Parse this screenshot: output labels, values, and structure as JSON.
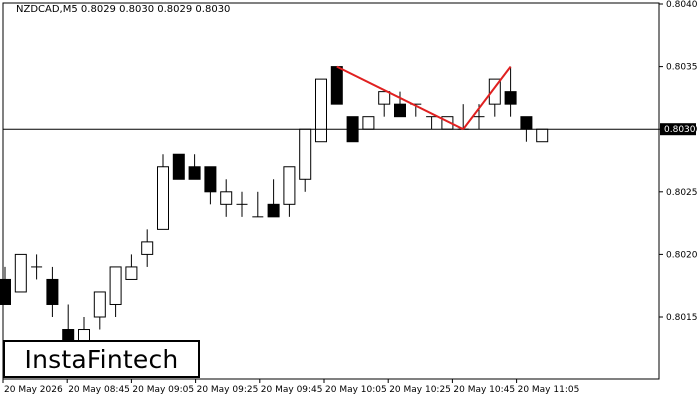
{
  "header": {
    "symbol": "NZDCAD,M5",
    "ohlc": "0.8029 0.8030 0.8029 0.8030"
  },
  "logo": {
    "text": "InstaFintech"
  },
  "chart_data": {
    "type": "candlestick",
    "symbol": "NZDCAD",
    "timeframe": "M5",
    "ylim": [
      0.801,
      0.804
    ],
    "y_ticks": [
      "0.8040",
      "0.8035",
      "0.8030",
      "0.8025",
      "0.8020",
      "0.8015"
    ],
    "x_ticks": [
      "20 May 2026",
      "20 May 08:45",
      "20 May 09:05",
      "20 May 09:25",
      "20 May 09:45",
      "20 May 10:05",
      "20 May 10:25",
      "20 May 10:45",
      "20 May 11:05"
    ],
    "current_price": 0.803,
    "current_price_label": "0.8030",
    "candles": [
      {
        "o": 0.8018,
        "h": 0.8019,
        "l": 0.8016,
        "c": 0.8016
      },
      {
        "o": 0.8017,
        "h": 0.802,
        "l": 0.8017,
        "c": 0.802
      },
      {
        "o": 0.8019,
        "h": 0.802,
        "l": 0.8018,
        "c": 0.8019
      },
      {
        "o": 0.8018,
        "h": 0.8019,
        "l": 0.8015,
        "c": 0.8016
      },
      {
        "o": 0.8014,
        "h": 0.8016,
        "l": 0.8013,
        "c": 0.8013
      },
      {
        "o": 0.8013,
        "h": 0.8015,
        "l": 0.8012,
        "c": 0.8014
      },
      {
        "o": 0.8015,
        "h": 0.8017,
        "l": 0.8014,
        "c": 0.8017
      },
      {
        "o": 0.8016,
        "h": 0.8019,
        "l": 0.8015,
        "c": 0.8019
      },
      {
        "o": 0.8018,
        "h": 0.802,
        "l": 0.8018,
        "c": 0.8019
      },
      {
        "o": 0.802,
        "h": 0.8022,
        "l": 0.8019,
        "c": 0.8021
      },
      {
        "o": 0.8022,
        "h": 0.8028,
        "l": 0.8022,
        "c": 0.8027
      },
      {
        "o": 0.8028,
        "h": 0.8028,
        "l": 0.8026,
        "c": 0.8026
      },
      {
        "o": 0.8027,
        "h": 0.8028,
        "l": 0.8026,
        "c": 0.8026
      },
      {
        "o": 0.8027,
        "h": 0.8027,
        "l": 0.8024,
        "c": 0.8025
      },
      {
        "o": 0.8024,
        "h": 0.8026,
        "l": 0.8023,
        "c": 0.8025
      },
      {
        "o": 0.8024,
        "h": 0.8025,
        "l": 0.8023,
        "c": 0.8024
      },
      {
        "o": 0.8023,
        "h": 0.8025,
        "l": 0.8023,
        "c": 0.8023
      },
      {
        "o": 0.8024,
        "h": 0.8026,
        "l": 0.8023,
        "c": 0.8023
      },
      {
        "o": 0.8024,
        "h": 0.8027,
        "l": 0.8023,
        "c": 0.8027
      },
      {
        "o": 0.8026,
        "h": 0.803,
        "l": 0.8025,
        "c": 0.803
      },
      {
        "o": 0.8029,
        "h": 0.8034,
        "l": 0.8029,
        "c": 0.8034
      },
      {
        "o": 0.8035,
        "h": 0.8035,
        "l": 0.8032,
        "c": 0.8032
      },
      {
        "o": 0.8031,
        "h": 0.8031,
        "l": 0.8029,
        "c": 0.8029
      },
      {
        "o": 0.803,
        "h": 0.8031,
        "l": 0.803,
        "c": 0.8031
      },
      {
        "o": 0.8032,
        "h": 0.8033,
        "l": 0.8031,
        "c": 0.8033
      },
      {
        "o": 0.8032,
        "h": 0.8033,
        "l": 0.8031,
        "c": 0.8031
      },
      {
        "o": 0.8032,
        "h": 0.8032,
        "l": 0.8031,
        "c": 0.8032
      },
      {
        "o": 0.8031,
        "h": 0.8031,
        "l": 0.803,
        "c": 0.8031
      },
      {
        "o": 0.803,
        "h": 0.8031,
        "l": 0.803,
        "c": 0.8031
      },
      {
        "o": 0.803,
        "h": 0.8032,
        "l": 0.803,
        "c": 0.803
      },
      {
        "o": 0.8031,
        "h": 0.8032,
        "l": 0.803,
        "c": 0.8031
      },
      {
        "o": 0.8032,
        "h": 0.8034,
        "l": 0.8031,
        "c": 0.8034
      },
      {
        "o": 0.8033,
        "h": 0.8035,
        "l": 0.8031,
        "c": 0.8032
      },
      {
        "o": 0.8031,
        "h": 0.8031,
        "l": 0.8029,
        "c": 0.803
      },
      {
        "o": 0.8029,
        "h": 0.803,
        "l": 0.8029,
        "c": 0.803
      }
    ],
    "pattern": {
      "color": "#e02020",
      "candle_index": [
        21,
        29,
        32
      ],
      "price": [
        0.8035,
        0.803,
        0.8035
      ]
    }
  }
}
